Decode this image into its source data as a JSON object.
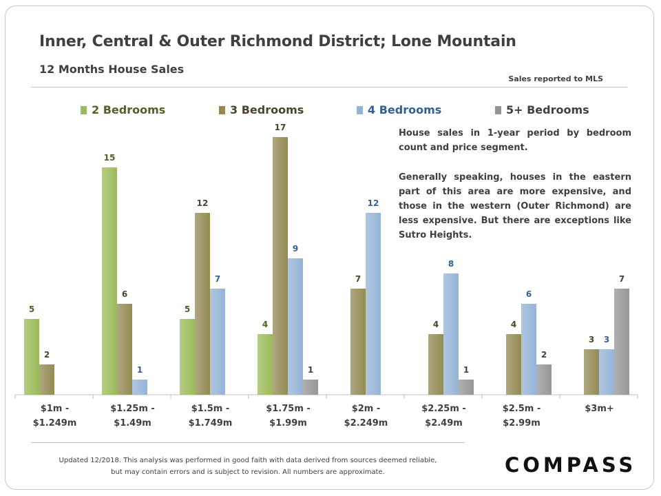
{
  "header": {
    "title": "Inner, Central & Outer Richmond District; Lone Mountain",
    "subtitle": "12 Months House Sales",
    "source_note": "Sales reported to MLS"
  },
  "description": {
    "paragraph1": "House sales in 1-year period by bedroom count and price segment.",
    "paragraph2": "Generally speaking, houses in the eastern part of this area are more expensive, and those in the western (Outer Richmond) are less expensive. But there are exceptions like Sutro Heights."
  },
  "footer": {
    "line1": "Updated 12/2018. This analysis was performed in good faith with data derived from sources deemed reliable,",
    "line2": "but may contain errors and is subject to revision. All numbers are approximate.",
    "logo": "COMPASS"
  },
  "colors": {
    "two_bed": "#9bbb59",
    "three_bed": "#948a54",
    "four_bed": "#95b3d7",
    "five_bed": "#969696",
    "label_two": "#4f6228",
    "label_three": "#4a452a",
    "label_four": "#366092",
    "label_five": "#404040"
  },
  "chart_data": {
    "type": "bar",
    "title": "Inner, Central & Outer Richmond District; Lone Mountain",
    "subtitle": "12 Months House Sales",
    "xlabel": "",
    "ylabel": "",
    "ylim": [
      0,
      18
    ],
    "grid": false,
    "legend_position": "top",
    "categories": [
      [
        "$1m -",
        "$1.249m"
      ],
      [
        "$1.25m -",
        "$1.49m"
      ],
      [
        "$1.5m -",
        "$1.749m"
      ],
      [
        "$1.75m -",
        "$1.99m"
      ],
      [
        "$2m -",
        "$2.249m"
      ],
      [
        "$2.25m -",
        "$2.49m"
      ],
      [
        "$2.5m -",
        "$2.99m"
      ],
      [
        "$3m+"
      ]
    ],
    "series": [
      {
        "name": "2 Bedrooms",
        "key": "two_bed",
        "values": [
          5,
          15,
          5,
          4,
          null,
          null,
          null,
          null
        ]
      },
      {
        "name": "3 Bedrooms",
        "key": "three_bed",
        "values": [
          2,
          6,
          12,
          17,
          7,
          4,
          4,
          3
        ]
      },
      {
        "name": "4 Bedrooms",
        "key": "four_bed",
        "values": [
          null,
          1,
          7,
          9,
          12,
          8,
          6,
          3
        ]
      },
      {
        "name": "5+ Bedrooms",
        "key": "five_bed",
        "values": [
          null,
          null,
          null,
          1,
          null,
          1,
          2,
          7
        ]
      }
    ]
  }
}
